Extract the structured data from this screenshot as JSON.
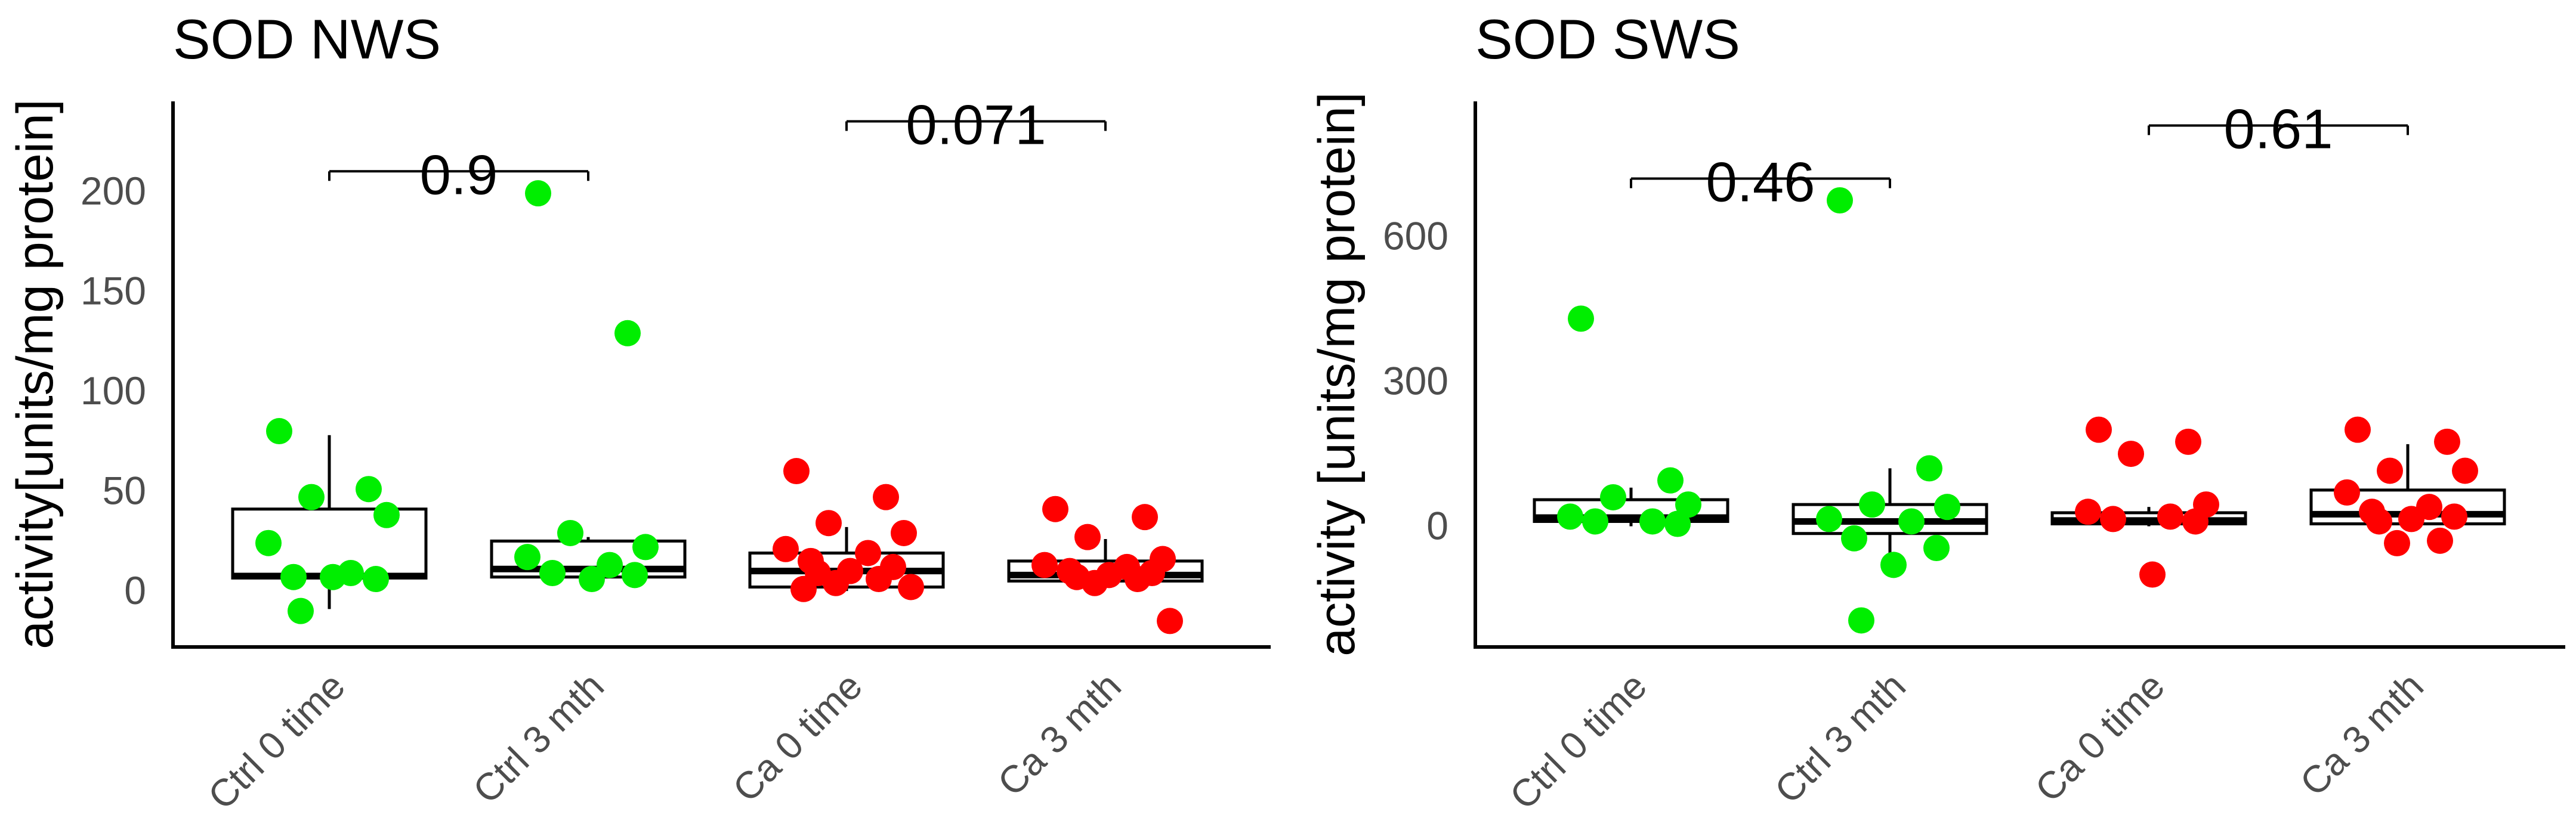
{
  "chart_data": [
    {
      "type": "box",
      "title": "SOD NWS",
      "xlabel": "",
      "ylabel": "activity[units/mg protein]",
      "ylim": [
        -28,
        245
      ],
      "yticks": [
        0,
        50,
        100,
        150,
        200
      ],
      "categories": [
        "Ctrl 0 time",
        "Ctrl 3 mth",
        "Ca 0 time",
        "Ca 3 mth"
      ],
      "colors": [
        "#00ee00",
        "#00ee00",
        "#ff0000",
        "#ff0000"
      ],
      "boxes": [
        {
          "q1": 6.5,
          "median": 7.5,
          "q3": 41,
          "whisker_low": -9,
          "whisker_high": 78
        },
        {
          "q1": 7,
          "median": 11,
          "q3": 25,
          "whisker_low": 6,
          "whisker_high": 27
        },
        {
          "q1": 2,
          "median": 10,
          "q3": 19,
          "whisker_low": 0,
          "whisker_high": 32
        },
        {
          "q1": 5,
          "median": 8,
          "q3": 15,
          "whisker_low": 3,
          "whisker_high": 26
        }
      ],
      "points": [
        [
          80,
          51,
          47,
          38,
          24,
          9,
          7,
          6,
          7,
          -10
        ],
        [
          199,
          129,
          29,
          22,
          17,
          13,
          9,
          8,
          6
        ],
        [
          60,
          47,
          34,
          29,
          21,
          19,
          15,
          12,
          10,
          9,
          6,
          4,
          2,
          1
        ],
        [
          41,
          37,
          27,
          16,
          13,
          12,
          10,
          9,
          8,
          7,
          6,
          4,
          -15
        ]
      ],
      "comparisons": [
        {
          "groups": [
            "Ctrl 0 time",
            "Ctrl 3 mth"
          ],
          "y": 210,
          "label": "0.9"
        },
        {
          "groups": [
            "Ca 0 time",
            "Ca 3 mth"
          ],
          "y": 235,
          "label": "0.071"
        }
      ]
    },
    {
      "type": "box",
      "title": "SOD SWS",
      "xlabel": "",
      "ylabel": "activity [units/mg protein]",
      "ylim": [
        -250,
        880
      ],
      "yticks": [
        0,
        300,
        600
      ],
      "categories": [
        "Ctrl 0 time",
        "Ctrl 3 mth",
        "Ca 0 time",
        "Ca 3 mth"
      ],
      "colors": [
        "#00ee00",
        "#00ee00",
        "#ff0000",
        "#ff0000"
      ],
      "boxes": [
        {
          "q1": 10,
          "median": 18,
          "q3": 55,
          "whisker_low": 0,
          "whisker_high": 80
        },
        {
          "q1": -15,
          "median": 10,
          "q3": 45,
          "whisker_low": -75,
          "whisker_high": 120
        },
        {
          "q1": 5,
          "median": 12,
          "q3": 28,
          "whisker_low": 0,
          "whisker_high": 40
        },
        {
          "q1": 5,
          "median": 25,
          "q3": 75,
          "whisker_low": -10,
          "whisker_high": 170
        }
      ],
      "points": [
        [
          430,
          95,
          60,
          45,
          20,
          10,
          10,
          5
        ],
        [
          675,
          120,
          45,
          40,
          15,
          10,
          -25,
          -45,
          -80,
          -195
        ],
        [
          200,
          175,
          150,
          45,
          30,
          20,
          15,
          10,
          -100
        ],
        [
          200,
          175,
          115,
          115,
          70,
          40,
          30,
          20,
          15,
          10,
          -30,
          -35
        ]
      ],
      "comparisons": [
        {
          "groups": [
            "Ctrl 0 time",
            "Ctrl 3 mth"
          ],
          "y": 720,
          "label": "0.46"
        },
        {
          "groups": [
            "Ca 0 time",
            "Ca 3 mth"
          ],
          "y": 830,
          "label": "0.61"
        }
      ]
    }
  ]
}
